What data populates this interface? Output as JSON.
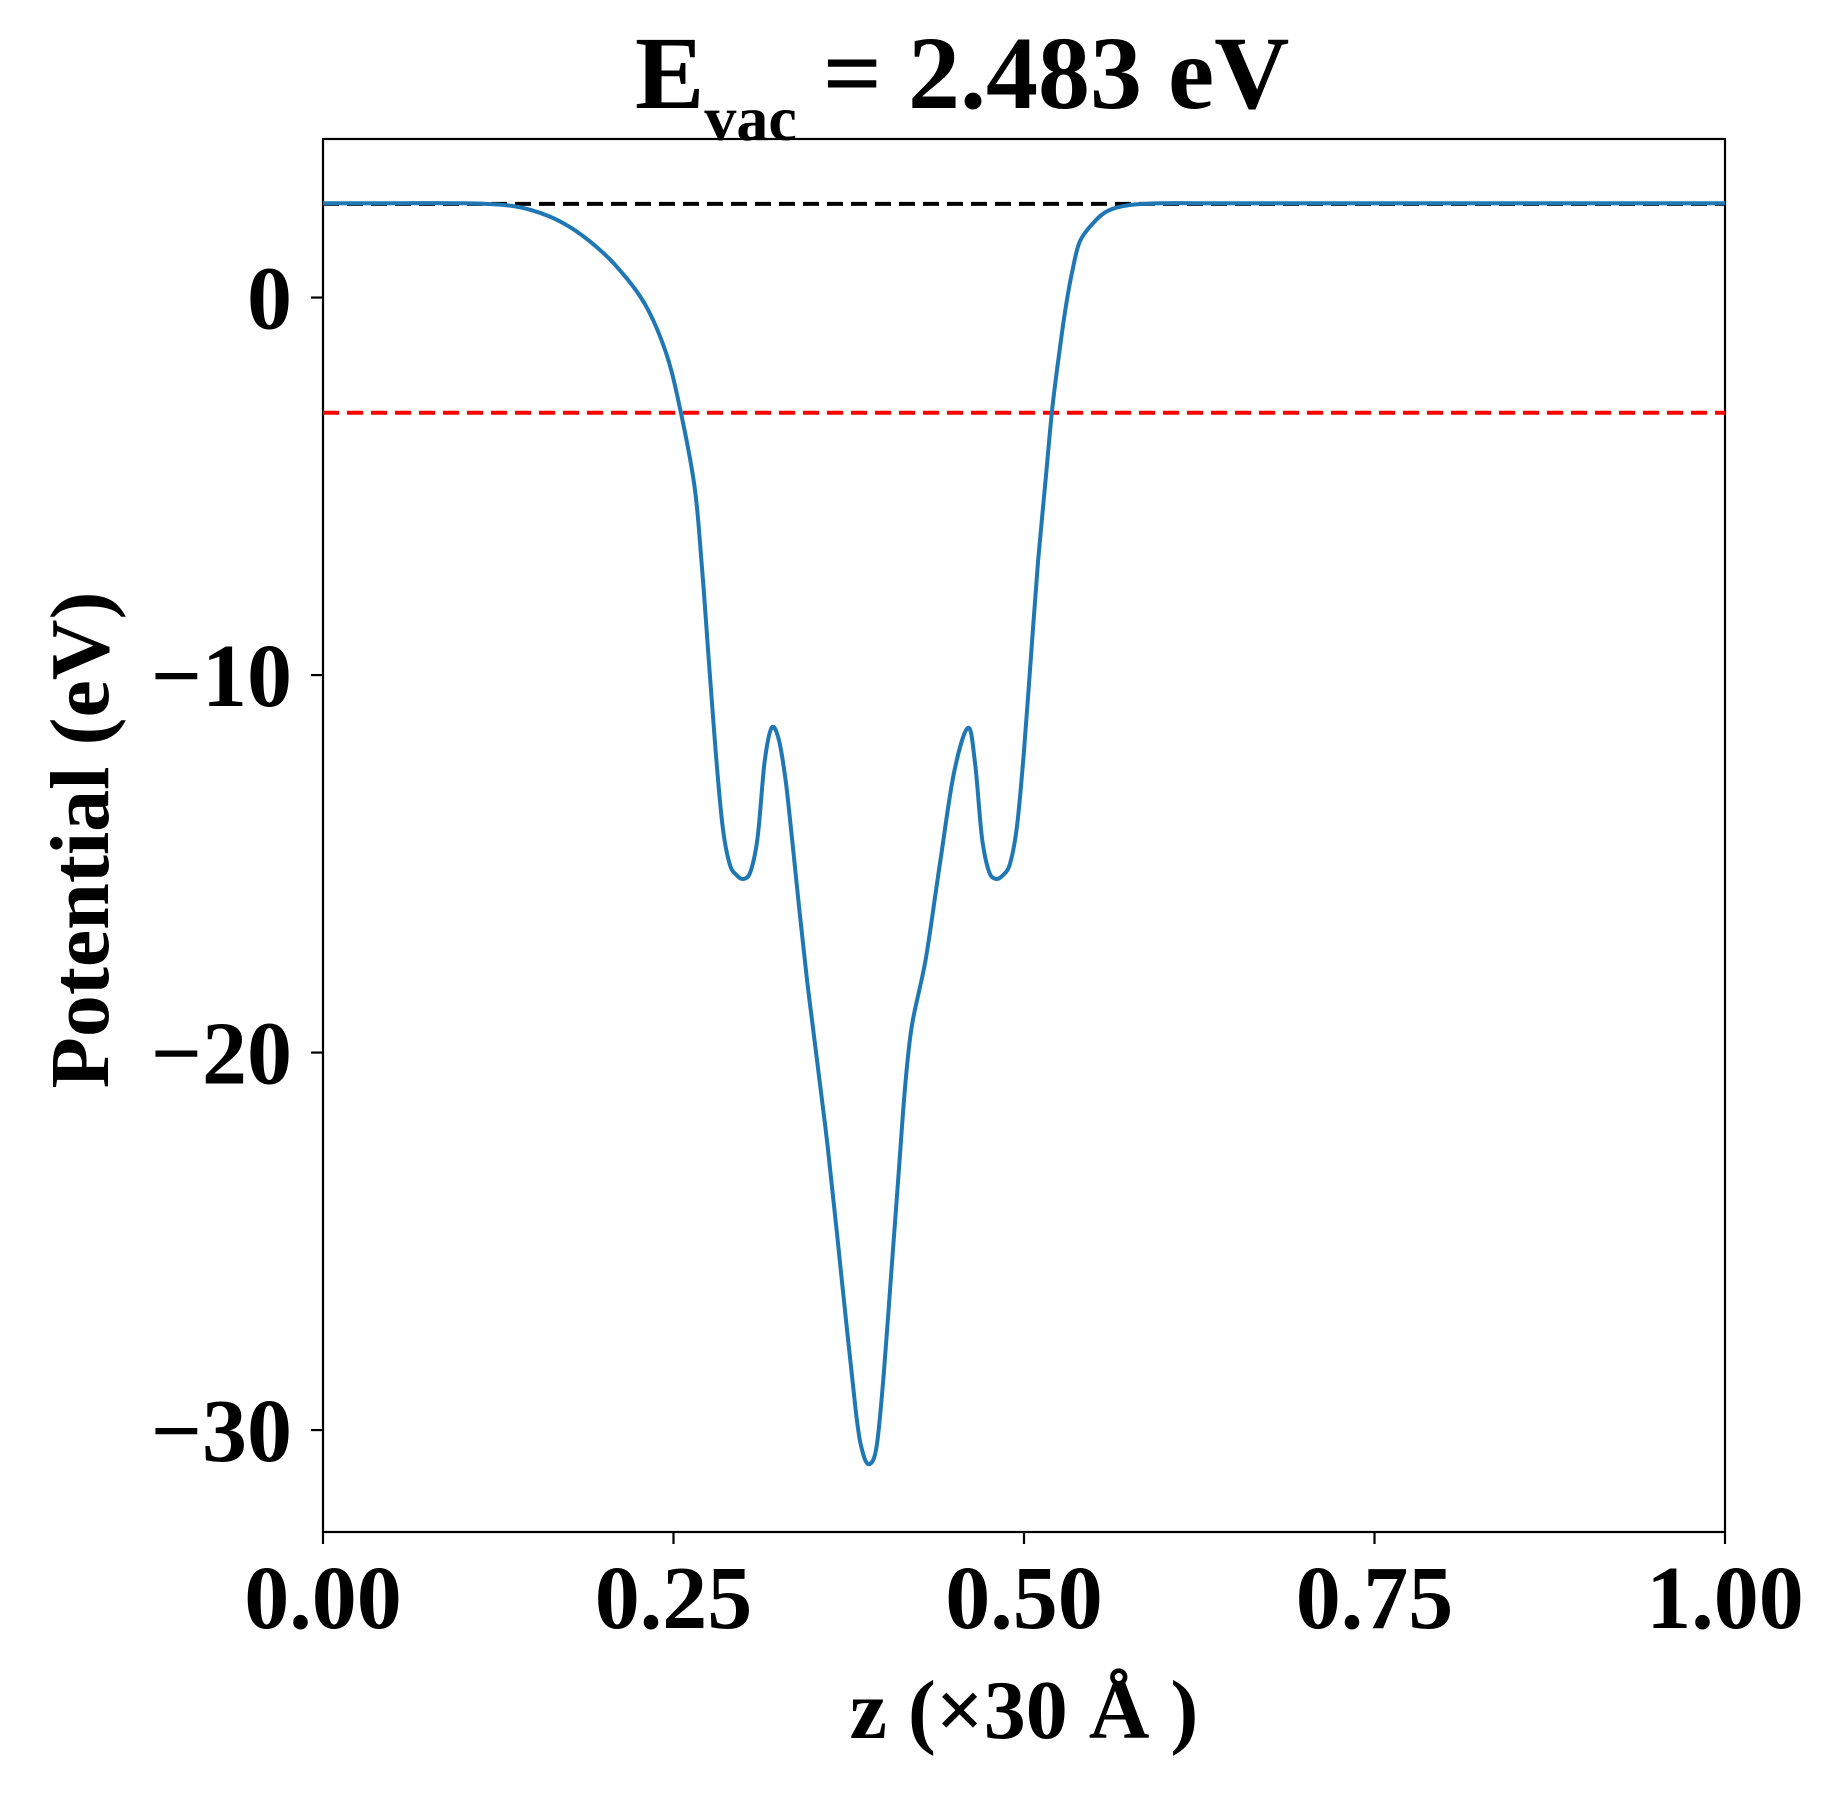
{
  "chart_data": {
    "type": "line",
    "title": {
      "main": "E",
      "subscript": "vac",
      "rest": " = 2.483 eV"
    },
    "xlabel": "z (×30 Å )",
    "ylabel": "Potential (eV)",
    "xlim": [
      0.0,
      1.0
    ],
    "ylim": [
      -32.7,
      4.2
    ],
    "xticks": [
      {
        "value": 0.0,
        "label": "0.00"
      },
      {
        "value": 0.25,
        "label": "0.25"
      },
      {
        "value": 0.5,
        "label": "0.50"
      },
      {
        "value": 0.75,
        "label": "0.75"
      },
      {
        "value": 1.0,
        "label": "1.00"
      }
    ],
    "yticks": [
      {
        "value": 0,
        "label": "0"
      },
      {
        "value": -10,
        "label": "−10"
      },
      {
        "value": -20,
        "label": "−20"
      },
      {
        "value": -30,
        "label": "−30"
      }
    ],
    "grid": false,
    "hlines": [
      {
        "y": 2.483,
        "color": "#000000",
        "style": "dashed"
      },
      {
        "y": -3.05,
        "color": "#ff0000",
        "style": "dashed"
      }
    ],
    "series": [
      {
        "color": "#1f77b4",
        "x": [
          0.0,
          0.05,
          0.1,
          0.13,
          0.15,
          0.17,
          0.19,
          0.21,
          0.23,
          0.245,
          0.255,
          0.265,
          0.27,
          0.275,
          0.28,
          0.285,
          0.29,
          0.295,
          0.3,
          0.305,
          0.31,
          0.315,
          0.32,
          0.325,
          0.33,
          0.335,
          0.34,
          0.345,
          0.35,
          0.36,
          0.37,
          0.38,
          0.385,
          0.39,
          0.395,
          0.4,
          0.405,
          0.41,
          0.415,
          0.42,
          0.43,
          0.44,
          0.45,
          0.46,
          0.465,
          0.47,
          0.475,
          0.48,
          0.485,
          0.49,
          0.495,
          0.5,
          0.505,
          0.51,
          0.515,
          0.52,
          0.525,
          0.53,
          0.535,
          0.54,
          0.55,
          0.56,
          0.575,
          0.6,
          0.62,
          0.64,
          0.66,
          0.7,
          0.75,
          0.8,
          0.85,
          0.9,
          0.95,
          1.0
        ],
        "y": [
          2.5,
          2.5,
          2.5,
          2.45,
          2.3,
          2.0,
          1.5,
          0.8,
          -0.2,
          -1.5,
          -3.0,
          -5.0,
          -7.0,
          -9.5,
          -12.0,
          -14.0,
          -15.0,
          -15.3,
          -15.4,
          -15.2,
          -14.3,
          -12.3,
          -11.4,
          -11.7,
          -12.8,
          -14.5,
          -16.3,
          -18.0,
          -19.5,
          -22.5,
          -26.0,
          -29.5,
          -30.6,
          -30.9,
          -30.4,
          -28.5,
          -26.0,
          -23.5,
          -21.0,
          -19.3,
          -17.5,
          -15.0,
          -12.6,
          -11.4,
          -12.3,
          -14.3,
          -15.2,
          -15.4,
          -15.3,
          -15.0,
          -14.0,
          -12.0,
          -9.5,
          -7.0,
          -5.0,
          -3.0,
          -1.5,
          -0.2,
          0.8,
          1.5,
          2.0,
          2.3,
          2.45,
          2.5,
          2.5,
          2.5,
          2.5,
          2.5,
          2.5,
          2.5,
          2.5,
          2.5,
          2.5,
          2.5
        ]
      }
    ]
  }
}
